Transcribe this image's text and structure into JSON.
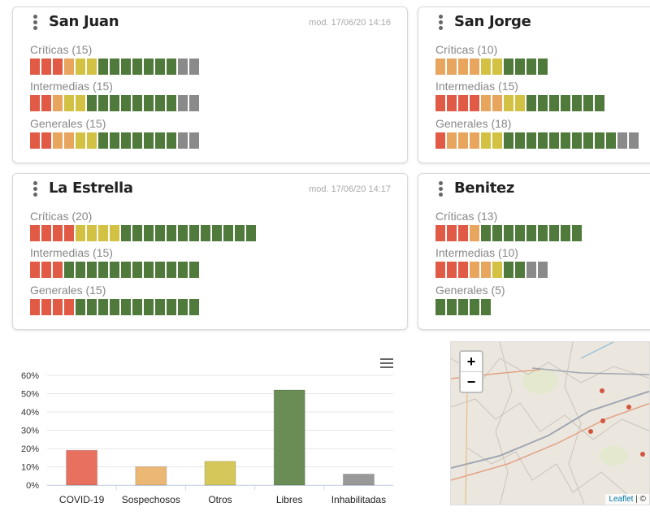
{
  "status_colors": {
    "covid": "#e05a46",
    "sospechosos": "#e8a55e",
    "otros": "#d3c143",
    "libres": "#4f7a3b",
    "inhabilitadas": "#8a8a8a"
  },
  "hospitals": [
    {
      "name": "San Juan",
      "modified": "mod. 17/06/20 14:16",
      "categories": [
        {
          "label": "Críticas (15)",
          "beds": {
            "covid": 3,
            "sospechosos": 1,
            "otros": 2,
            "libres": 7,
            "inhabilitadas": 2
          }
        },
        {
          "label": "Intermedias (15)",
          "beds": {
            "covid": 2,
            "sospechosos": 1,
            "otros": 2,
            "libres": 8,
            "inhabilitadas": 2
          }
        },
        {
          "label": "Generales (15)",
          "beds": {
            "covid": 2,
            "sospechosos": 2,
            "otros": 2,
            "libres": 7,
            "inhabilitadas": 2
          }
        }
      ]
    },
    {
      "name": "San Jorge",
      "modified": "",
      "categories": [
        {
          "label": "Críticas (10)",
          "beds": {
            "covid": 0,
            "sospechosos": 4,
            "otros": 2,
            "libres": 4,
            "inhabilitadas": 0
          }
        },
        {
          "label": "Intermedias (15)",
          "beds": {
            "covid": 4,
            "sospechosos": 2,
            "otros": 2,
            "libres": 7,
            "inhabilitadas": 0
          }
        },
        {
          "label": "Generales (18)",
          "beds": {
            "covid": 1,
            "sospechosos": 3,
            "otros": 2,
            "libres": 10,
            "inhabilitadas": 2
          }
        }
      ]
    },
    {
      "name": "La Estrella",
      "modified": "mod. 17/06/20 14:17",
      "categories": [
        {
          "label": "Críticas (20)",
          "beds": {
            "covid": 4,
            "sospechosos": 0,
            "otros": 4,
            "libres": 12,
            "inhabilitadas": 0
          }
        },
        {
          "label": "Intermedias (15)",
          "beds": {
            "covid": 3,
            "sospechosos": 0,
            "otros": 0,
            "libres": 12,
            "inhabilitadas": 0
          }
        },
        {
          "label": "Generales (15)",
          "beds": {
            "covid": 4,
            "sospechosos": 0,
            "otros": 0,
            "libres": 11,
            "inhabilitadas": 0
          }
        }
      ]
    },
    {
      "name": "Benitez",
      "modified": "",
      "categories": [
        {
          "label": "Críticas (13)",
          "beds": {
            "covid": 3,
            "sospechosos": 1,
            "otros": 0,
            "libres": 9,
            "inhabilitadas": 0
          }
        },
        {
          "label": "Intermedias (10)",
          "beds": {
            "covid": 3,
            "sospechosos": 2,
            "otros": 1,
            "libres": 2,
            "inhabilitadas": 2
          }
        },
        {
          "label": "Generales (5)",
          "beds": {
            "covid": 0,
            "sospechosos": 0,
            "otros": 0,
            "libres": 5,
            "inhabilitadas": 0
          }
        }
      ]
    }
  ],
  "chart_menu_icon": "hamburger-menu-icon",
  "chart_data": {
    "type": "bar",
    "categories": [
      "COVID-19",
      "Sospechosos",
      "Otros",
      "Libres",
      "Inhabilitadas"
    ],
    "values": [
      19,
      10,
      13,
      52,
      6
    ],
    "colors": [
      "#e8705f",
      "#ebb774",
      "#d6c75a",
      "#6a8d55",
      "#999999"
    ],
    "y_unit": "%",
    "yticks": [
      0,
      10,
      20,
      30,
      40,
      50,
      60
    ],
    "ylim": [
      0,
      60
    ],
    "grid": true,
    "title": "",
    "xlabel": "",
    "ylabel": ""
  },
  "map": {
    "zoom_in": "+",
    "zoom_out": "−",
    "attribution_link": "Leaflet",
    "attribution_rest": " | ©"
  }
}
